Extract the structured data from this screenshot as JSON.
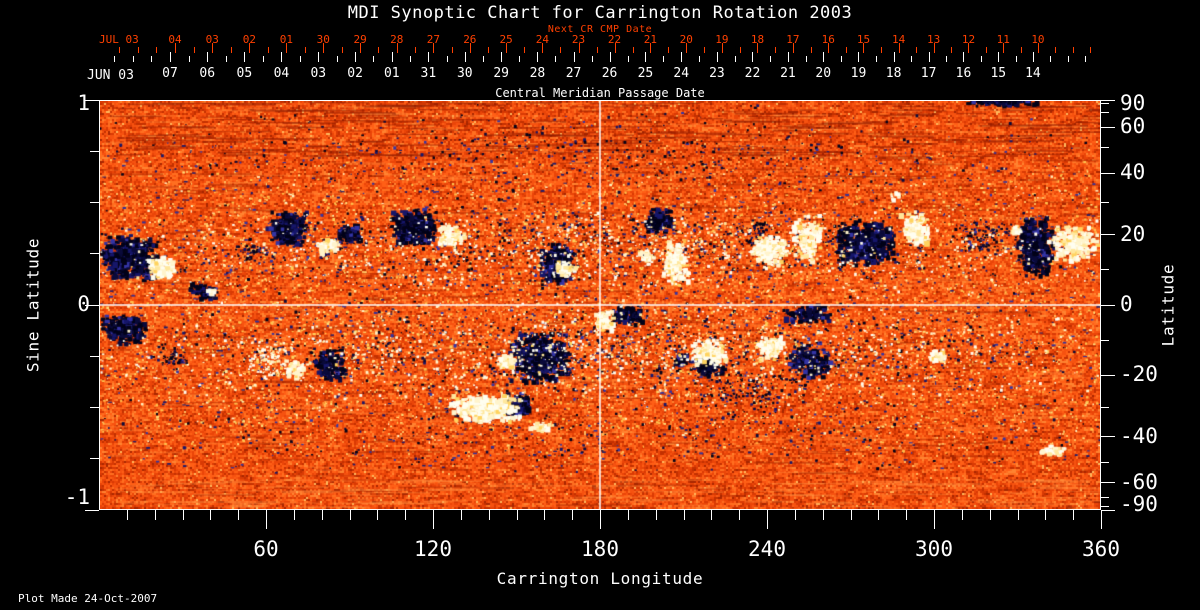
{
  "title": "MDI Synoptic Chart for Carrington Rotation 2003",
  "plot_made": "Plot Made 24-Oct-2007",
  "axes": {
    "next_cr": {
      "title": "Next CR CMP Date",
      "month_label": "JUL 03",
      "day_labels": [
        "04",
        "03",
        "02",
        "01",
        "30",
        "29",
        "28",
        "27",
        "26",
        "25",
        "24",
        "23",
        "22",
        "21",
        "20",
        "19",
        "18",
        "17",
        "16",
        "15",
        "14",
        "13",
        "12",
        "11",
        "10"
      ],
      "color": "#ff4000"
    },
    "cmp": {
      "title": "Central Meridian Passage Date",
      "month_label": "JUN 03",
      "day_labels": [
        "07",
        "06",
        "05",
        "04",
        "03",
        "02",
        "01",
        "31",
        "30",
        "29",
        "28",
        "27",
        "26",
        "25",
        "24",
        "23",
        "22",
        "21",
        "20",
        "19",
        "18",
        "17",
        "16",
        "15",
        "14"
      ]
    },
    "left": {
      "title": "Sine Latitude",
      "major_ticks": [
        1,
        0,
        -1
      ],
      "labels": [
        "1",
        "0",
        "-1"
      ],
      "minor_step": 0.25
    },
    "right": {
      "title": "Latitude",
      "major_ticks": [
        90,
        60,
        40,
        20,
        0,
        -20,
        -40,
        -60,
        -90
      ],
      "labels": [
        "90",
        "60",
        "40",
        "20",
        "0",
        "-20",
        "-40",
        "-60",
        "-90"
      ],
      "minor_ticks": [
        80,
        70,
        50,
        30,
        10,
        -10,
        -30,
        -50,
        -70,
        -80
      ]
    },
    "bottom": {
      "title": "Carrington Longitude",
      "major_ticks": [
        60,
        120,
        180,
        240,
        300,
        360
      ],
      "labels": [
        "60",
        "120",
        "180",
        "240",
        "300",
        "360"
      ],
      "minor_step": 10
    }
  },
  "chart_data": {
    "type": "heatmap",
    "title": "MDI Synoptic Chart for Carrington Rotation 2003",
    "xlabel": "Carrington Longitude",
    "ylabel_left": "Sine Latitude",
    "ylabel_right": "Latitude",
    "x_range": [
      0,
      360
    ],
    "y_range_sine_latitude": [
      -1,
      1
    ],
    "grid_lines": {
      "x": [
        180
      ],
      "y": [
        0
      ],
      "color": "#ffffff"
    },
    "colormap": {
      "base": [
        "#a82600",
        "#c33000",
        "#d93a04",
        "#ea4508",
        "#f65210",
        "#ff5f16",
        "#ff6f20",
        "#ff8330"
      ],
      "base_bright_speck": "#ffb85c",
      "speckle_warm": [
        "#ffc24e",
        "#ffdf7a",
        "#fff3c2"
      ],
      "speckle_dark": [
        "#1c1c6e",
        "#32329a"
      ],
      "negative_polarity": [
        "#020218",
        "#0a0a3a",
        "#16166a",
        "#3434a4"
      ],
      "positive_polarity": [
        "#fffef0",
        "#fff4cc",
        "#ffe79c",
        "#ffd35e"
      ]
    },
    "active_regions_format": [
      "longitude_deg",
      "sine_latitude",
      "half_width_deg",
      "half_height_sine",
      "density"
    ],
    "active_regions": {
      "dark": [
        [
          10.8,
          0.229,
          8.6,
          0.098,
          0.95
        ],
        [
          37.7,
          0.063,
          4.7,
          0.039,
          0.5
        ],
        [
          53.9,
          0.259,
          5.4,
          0.049,
          0.3
        ],
        [
          68.3,
          0.376,
          6.5,
          0.073,
          0.8
        ],
        [
          89.1,
          0.346,
          4.3,
          0.044,
          0.65
        ],
        [
          112.8,
          0.38,
          7.5,
          0.078,
          0.9
        ],
        [
          164.5,
          0.2,
          5.7,
          0.088,
          0.8
        ],
        [
          201.5,
          0.41,
          4.7,
          0.054,
          0.75
        ],
        [
          235.3,
          0.361,
          6.5,
          0.054,
          0.25
        ],
        [
          275.6,
          0.298,
          9.3,
          0.098,
          0.8
        ],
        [
          317.2,
          0.337,
          9.0,
          0.078,
          0.22
        ],
        [
          337.0,
          0.283,
          5.7,
          0.122,
          0.95
        ],
        [
          325.5,
          0.99,
          11.5,
          0.015,
          0.85
        ],
        [
          8.3,
          -0.122,
          7.2,
          0.063,
          0.8
        ],
        [
          26.2,
          -0.259,
          6.5,
          0.068,
          0.2
        ],
        [
          83.0,
          -0.298,
          5.0,
          0.063,
          0.7
        ],
        [
          158.5,
          -0.259,
          9.7,
          0.112,
          0.8
        ],
        [
          150.6,
          -0.493,
          4.3,
          0.049,
          0.9
        ],
        [
          190.4,
          -0.049,
          5.4,
          0.044,
          0.8
        ],
        [
          219.5,
          -0.307,
          5.0,
          0.044,
          0.55
        ],
        [
          209.8,
          -0.278,
          3.2,
          0.034,
          0.5
        ],
        [
          255.8,
          -0.278,
          6.8,
          0.073,
          0.6
        ],
        [
          254.7,
          -0.049,
          7.5,
          0.039,
          0.6
        ],
        [
          233.5,
          -0.424,
          19.8,
          0.117,
          0.12
        ],
        [
          180,
          0.278,
          172,
          0.205,
          0.045
        ],
        [
          180,
          -0.21,
          172,
          0.22,
          0.045
        ],
        [
          180,
          0.732,
          176,
          0.22,
          0.022
        ],
        [
          180,
          -0.61,
          176,
          0.195,
          0.018
        ]
      ],
      "bright": [
        [
          22.3,
          0.18,
          4.3,
          0.044,
          0.95
        ],
        [
          39.9,
          0.063,
          1.8,
          0.02,
          0.7
        ],
        [
          81.9,
          0.288,
          3.2,
          0.034,
          0.8
        ],
        [
          126.8,
          0.332,
          4.3,
          0.044,
          0.85
        ],
        [
          168.1,
          0.176,
          2.9,
          0.034,
          0.85
        ],
        [
          207.6,
          0.2,
          4.3,
          0.093,
          0.7
        ],
        [
          196.9,
          0.229,
          2.5,
          0.034,
          0.55
        ],
        [
          240.7,
          0.268,
          6.1,
          0.063,
          0.7
        ],
        [
          254.7,
          0.327,
          4.7,
          0.102,
          0.5
        ],
        [
          293.5,
          0.376,
          4.3,
          0.078,
          0.85
        ],
        [
          286.3,
          0.532,
          1.8,
          0.02,
          0.6
        ],
        [
          350.6,
          0.298,
          7.5,
          0.073,
          0.8
        ],
        [
          329.5,
          0.361,
          1.8,
          0.02,
          0.7
        ],
        [
          61.4,
          -0.268,
          7.9,
          0.088,
          0.3
        ],
        [
          70.4,
          -0.317,
          3.2,
          0.039,
          0.75
        ],
        [
          146.6,
          -0.278,
          3.2,
          0.034,
          0.7
        ],
        [
          139.8,
          -0.512,
          11.5,
          0.059,
          0.85
        ],
        [
          158.8,
          -0.6,
          4.0,
          0.024,
          0.6
        ],
        [
          181.8,
          -0.083,
          2.9,
          0.044,
          0.8
        ],
        [
          219.5,
          -0.234,
          5.7,
          0.059,
          0.8
        ],
        [
          241.8,
          -0.21,
          4.3,
          0.054,
          0.8
        ],
        [
          302.1,
          -0.254,
          3.2,
          0.029,
          0.7
        ],
        [
          343.4,
          -0.717,
          4.7,
          0.02,
          0.6
        ],
        [
          180,
          0.268,
          172,
          0.195,
          0.05
        ],
        [
          180,
          -0.244,
          172,
          0.244,
          0.05
        ]
      ]
    }
  }
}
